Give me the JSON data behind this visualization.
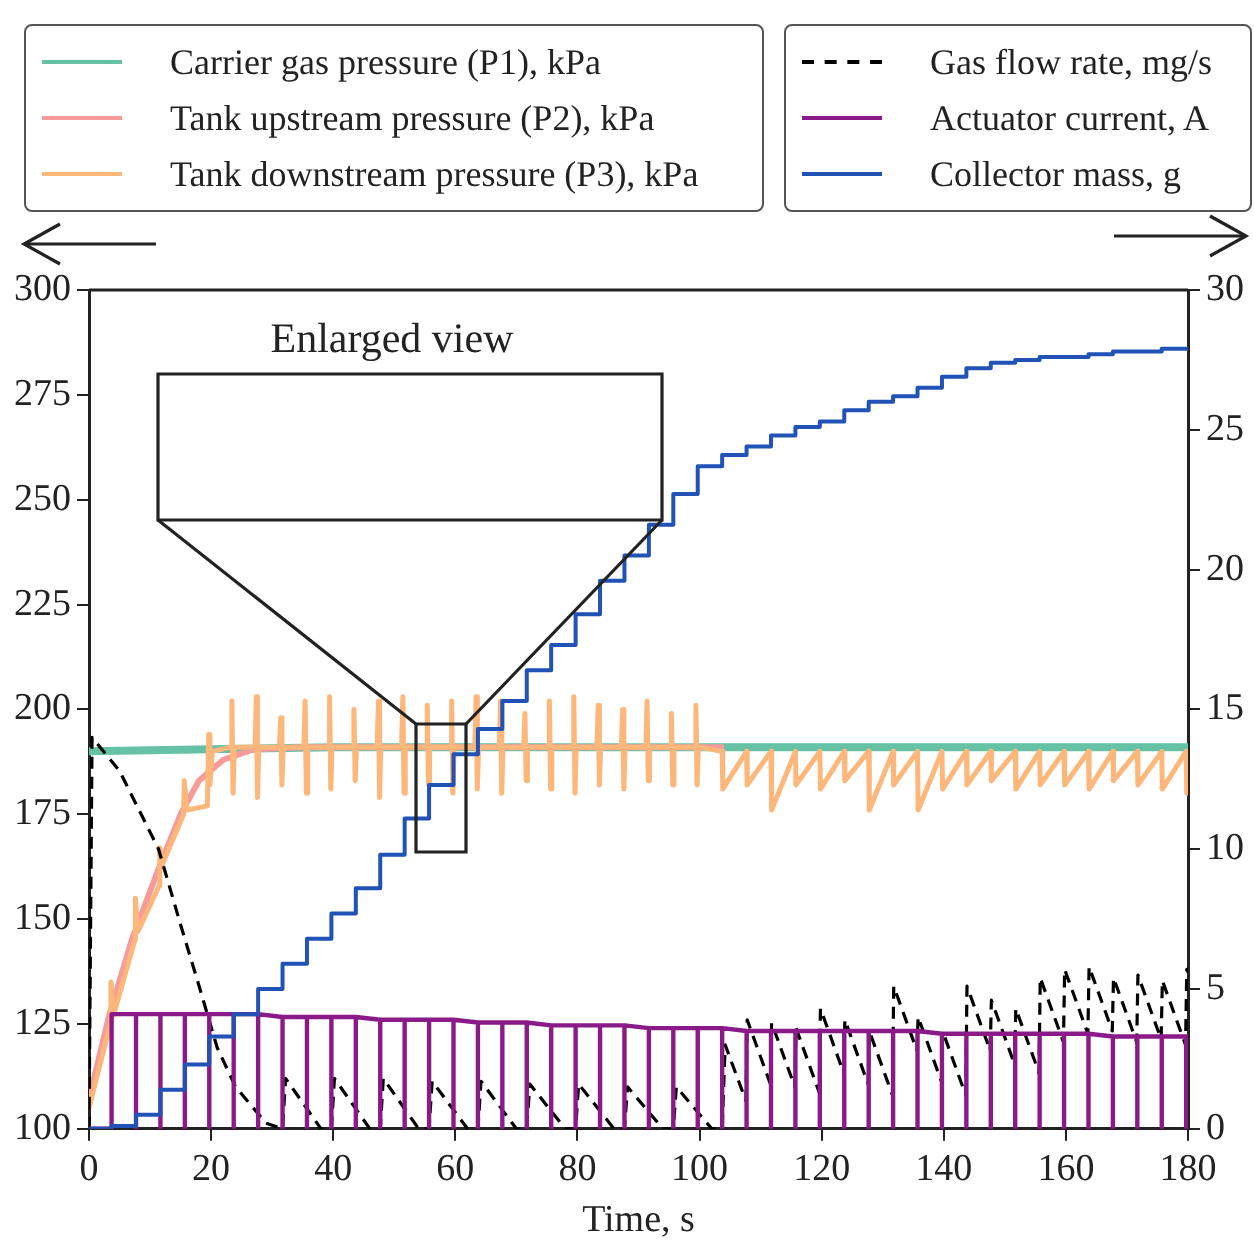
{
  "chart_data": {
    "type": "line",
    "xlabel": "Time, s",
    "xlim": [
      0,
      180
    ],
    "xticks": [
      0,
      20,
      40,
      60,
      80,
      100,
      120,
      140,
      160,
      180
    ],
    "ylim": [
      100,
      300
    ],
    "yticks": [
      100,
      125,
      150,
      175,
      200,
      225,
      250,
      275,
      300
    ],
    "y2lim": [
      0,
      30
    ],
    "y2ticks": [
      0,
      5,
      10,
      15,
      20,
      25,
      30
    ],
    "grid": false,
    "legend": "top",
    "annotations": [
      "Enlarged view"
    ],
    "series": [
      {
        "name": "Carrier gas pressure (P1), kPa",
        "color": "#66c2a5",
        "axis": "y",
        "x": [
          0,
          40,
          180
        ],
        "values": [
          190,
          191,
          191
        ]
      },
      {
        "name": "Tank upstream pressure (P2), kPa",
        "color": "#f79a9a",
        "axis": "y",
        "x": [
          0,
          3.3,
          7,
          11.4,
          15,
          18,
          22,
          27,
          35,
          104
        ],
        "values": [
          107,
          127,
          145,
          162,
          175,
          183,
          188,
          190.5,
          191,
          191
        ]
      },
      {
        "name": "Tank downstream pressure (P3), kPa",
        "color": "#fdb77a",
        "axis": "y",
        "x": [
          0,
          3.5,
          3.6,
          4,
          7.5,
          7.6,
          8,
          11.5,
          11.6,
          12,
          15.5,
          15.6,
          16,
          19.4,
          19.6,
          19.8,
          20.2,
          23.2,
          23.4,
          23.6,
          23.8,
          27.2,
          27.4,
          27.6,
          27.8,
          31.2,
          31.4,
          31.6,
          31.8,
          35.2,
          35.4,
          35.6,
          35.8,
          39.2,
          39.4,
          39.6,
          39.8,
          43.2,
          43.4,
          43.6,
          43.8,
          47.2,
          47.4,
          47.6,
          47.8,
          51.2,
          51.4,
          51.6,
          51.8,
          55.2,
          55.4,
          55.6,
          55.8,
          59.2,
          59.4,
          59.6,
          59.8,
          63.2,
          63.4,
          63.6,
          63.8,
          67.2,
          67.4,
          67.6,
          67.8,
          71.2,
          71.4,
          71.6,
          71.8,
          75.2,
          75.4,
          75.6,
          75.8,
          79.2,
          79.4,
          79.6,
          79.8,
          83.2,
          83.4,
          83.6,
          83.8,
          87.2,
          87.4,
          87.6,
          87.8,
          91.2,
          91.4,
          91.6,
          91.8,
          95.2,
          95.4,
          95.6,
          95.8,
          99.2,
          99.4,
          99.6,
          99.8,
          103.7,
          103.8,
          107.7,
          107.8,
          111.7,
          111.8,
          115.7,
          115.8,
          119.7,
          119.8,
          123.7,
          123.8,
          127.7,
          127.8,
          131.7,
          131.8,
          135.7,
          135.8,
          139.7,
          139.8,
          143.7,
          143.8,
          147.7,
          147.8,
          151.7,
          151.8,
          155.7,
          155.8,
          159.7,
          159.8,
          163.7,
          163.8,
          167.7,
          167.8,
          171.7,
          171.8,
          175.7,
          175.8,
          179.7,
          179.8,
          180
        ],
        "values": [
          105,
          125,
          135,
          127,
          145,
          155,
          147,
          158,
          167,
          163,
          175,
          183,
          176,
          177,
          194,
          182,
          190,
          191,
          202,
          180,
          191,
          191,
          203,
          179,
          191,
          191,
          198,
          182,
          191,
          191,
          202,
          180,
          191,
          191,
          203,
          181,
          191,
          191,
          200,
          183,
          191,
          191,
          202,
          179,
          191,
          191,
          203,
          180,
          191,
          191,
          201,
          182,
          191,
          191,
          202,
          180,
          191,
          191,
          203,
          181,
          191,
          191,
          202,
          180,
          191,
          191,
          199,
          183,
          191,
          191,
          202,
          181,
          191,
          191,
          203,
          180,
          191,
          191,
          201,
          182,
          191,
          191,
          200,
          181,
          191,
          191,
          202,
          183,
          191,
          191,
          199,
          182,
          191,
          191,
          201,
          182,
          191,
          190,
          181,
          190,
          182,
          190,
          176,
          190,
          182,
          190,
          181,
          190,
          183,
          190,
          176,
          190,
          182,
          190,
          176,
          190,
          181,
          190,
          182,
          190,
          183,
          190,
          181,
          190,
          182,
          190,
          182,
          190,
          181,
          190,
          183,
          190,
          182,
          190,
          181,
          190,
          180,
          182
        ]
      },
      {
        "name": "Gas flow rate, mg/s",
        "color": "#000000",
        "axis": "y2",
        "line_style": "dashed",
        "x": [
          0,
          0.5,
          5,
          11.4,
          15,
          17.9,
          21,
          24,
          26.7,
          29,
          31.7,
          32.2,
          38,
          39.7,
          40.2,
          46,
          47.7,
          48.2,
          54,
          55.7,
          56.2,
          62,
          63.7,
          64.2,
          70,
          71.7,
          72.2,
          78,
          79.7,
          80.2,
          86,
          87.7,
          88.2,
          94,
          95.7,
          96.2,
          102,
          103.7,
          104.2,
          107.6,
          107.8,
          111.6,
          111.8,
          115.6,
          115.8,
          119.6,
          119.8,
          123.6,
          123.8,
          127.6,
          127.8,
          131.6,
          131.8,
          135.6,
          135.8,
          139.6,
          139.8,
          143.6,
          143.8,
          147.6,
          147.8,
          151.6,
          151.8,
          155.6,
          155.8,
          159.6,
          159.8,
          163.6,
          163.8,
          167.6,
          167.8,
          171.6,
          171.8,
          175.6,
          175.8,
          179.6,
          179.8,
          180
        ],
        "values": [
          0,
          14.0,
          12.8,
          10.0,
          7.3,
          5.2,
          2.9,
          1.5,
          0.8,
          0.2,
          0,
          1.8,
          0,
          0,
          1.8,
          0,
          0,
          1.8,
          0,
          0,
          1.7,
          0,
          0,
          1.7,
          0,
          0,
          1.6,
          0,
          0,
          1.6,
          0,
          0,
          1.5,
          0,
          0,
          1.5,
          0,
          0,
          3.0,
          1.0,
          3.9,
          1.6,
          3.8,
          1.5,
          3.6,
          1.3,
          4.3,
          2.0,
          3.9,
          1.6,
          3.5,
          1.2,
          5.1,
          2.8,
          4.0,
          1.7,
          3.5,
          1.2,
          5.1,
          2.8,
          4.6,
          2.3,
          4.3,
          2.0,
          5.4,
          3.1,
          5.7,
          3.4,
          5.8,
          3.5,
          5.4,
          3.1,
          5.5,
          3.2,
          5.3,
          3.0,
          5.7,
          5.6
        ]
      },
      {
        "name": "Actuator current, A",
        "color": "#8b1a89",
        "axis": "y2",
        "x": [
          0,
          3.7,
          3.7,
          7.7,
          7.7,
          7.7,
          11.7,
          11.7,
          11.7,
          15.7,
          15.7,
          15.7,
          19.7,
          19.7,
          19.7,
          23.7,
          23.7,
          23.7,
          27.7,
          27.7,
          27.7,
          31.7,
          31.7,
          31.7,
          35.7,
          35.7,
          35.7,
          39.7,
          39.7,
          39.7,
          43.7,
          43.7,
          43.7,
          47.7,
          47.7,
          47.7,
          51.7,
          51.7,
          51.7,
          55.7,
          55.7,
          55.7,
          59.7,
          59.7,
          59.7,
          63.7,
          63.7,
          63.7,
          67.7,
          67.7,
          67.7,
          71.7,
          71.7,
          71.7,
          75.7,
          75.7,
          75.7,
          79.7,
          79.7,
          79.7,
          83.7,
          83.7,
          83.7,
          87.7,
          87.7,
          87.7,
          91.7,
          91.7,
          91.7,
          95.7,
          95.7,
          95.7,
          99.7,
          99.7,
          99.7,
          103.7,
          103.7,
          103.7,
          107.7,
          107.7,
          107.7,
          111.7,
          111.7,
          111.7,
          115.7,
          115.7,
          115.7,
          119.7,
          119.7,
          119.7,
          123.7,
          123.7,
          123.7,
          127.7,
          127.7,
          127.7,
          131.7,
          131.7,
          131.7,
          135.7,
          135.7,
          135.7,
          139.7,
          139.7,
          139.7,
          143.7,
          143.7,
          143.7,
          147.7,
          147.7,
          147.7,
          151.7,
          151.7,
          151.7,
          155.7,
          155.7,
          155.7,
          159.7,
          159.7,
          159.7,
          163.7,
          163.7,
          163.7,
          167.7,
          167.7,
          167.7,
          171.7,
          171.7,
          171.7,
          175.7,
          175.7,
          175.7,
          179.7,
          179.7,
          179.7,
          180
        ],
        "values": [
          0,
          0,
          4.1,
          4.1,
          0,
          4.1,
          4.1,
          0,
          4.1,
          4.1,
          0,
          4.1,
          4.1,
          0,
          4.1,
          4.1,
          0,
          4.1,
          4.1,
          0,
          4.1,
          4.0,
          0,
          4.0,
          4.0,
          0,
          4.0,
          4.0,
          0,
          4.0,
          4.0,
          0,
          4.0,
          3.9,
          0,
          3.9,
          3.9,
          0,
          3.9,
          3.9,
          0,
          3.9,
          3.9,
          0,
          3.9,
          3.8,
          0,
          3.8,
          3.8,
          0,
          3.8,
          3.8,
          0,
          3.8,
          3.7,
          0,
          3.7,
          3.7,
          0,
          3.7,
          3.7,
          0,
          3.7,
          3.7,
          0,
          3.7,
          3.6,
          0,
          3.6,
          3.6,
          0,
          3.6,
          3.6,
          0,
          3.6,
          3.6,
          0,
          3.6,
          3.5,
          0,
          3.5,
          3.5,
          0,
          3.5,
          3.5,
          0,
          3.5,
          3.5,
          0,
          3.5,
          3.5,
          0,
          3.5,
          3.5,
          0,
          3.5,
          3.5,
          0,
          3.5,
          3.5,
          0,
          3.5,
          3.4,
          0,
          3.4,
          3.4,
          0,
          3.4,
          3.4,
          0,
          3.4,
          3.4,
          0,
          3.4,
          3.4,
          0,
          3.4,
          3.4,
          0,
          3.4,
          3.4,
          0,
          3.4,
          3.3,
          0,
          3.3,
          3.3,
          0,
          3.3,
          3.3,
          0,
          3.3,
          3.3,
          0,
          3.3,
          3.3
        ]
      },
      {
        "name": "Collector mass, g",
        "color": "#2152b5",
        "axis": "y2",
        "type": "step",
        "x": [
          0,
          3.7,
          7.7,
          11.7,
          15.7,
          19.7,
          23.7,
          27.7,
          31.7,
          35.7,
          39.7,
          43.7,
          47.7,
          51.7,
          55.7,
          59.7,
          63.7,
          67.7,
          71.7,
          75.7,
          79.7,
          83.7,
          87.7,
          91.7,
          95.7,
          99.7,
          103.7,
          107.7,
          111.7,
          115.7,
          119.7,
          123.7,
          127.7,
          131.7,
          135.7,
          139.7,
          143.7,
          147.7,
          151.7,
          155.7,
          159.7,
          163.7,
          167.7,
          171.7,
          175.7,
          179.7,
          180
        ],
        "values": [
          0,
          0.1,
          0.5,
          1.4,
          2.3,
          3.3,
          4.1,
          5.0,
          5.9,
          6.8,
          7.7,
          8.6,
          9.8,
          11.1,
          12.3,
          13.4,
          14.3,
          15.3,
          16.4,
          17.3,
          18.4,
          19.6,
          20.5,
          21.6,
          22.7,
          23.7,
          24.1,
          24.4,
          24.8,
          25.1,
          25.3,
          25.7,
          26.0,
          26.2,
          26.5,
          26.9,
          27.2,
          27.4,
          27.5,
          27.6,
          27.6,
          27.7,
          27.8,
          27.8,
          27.9,
          27.9,
          27.9
        ]
      }
    ]
  }
}
